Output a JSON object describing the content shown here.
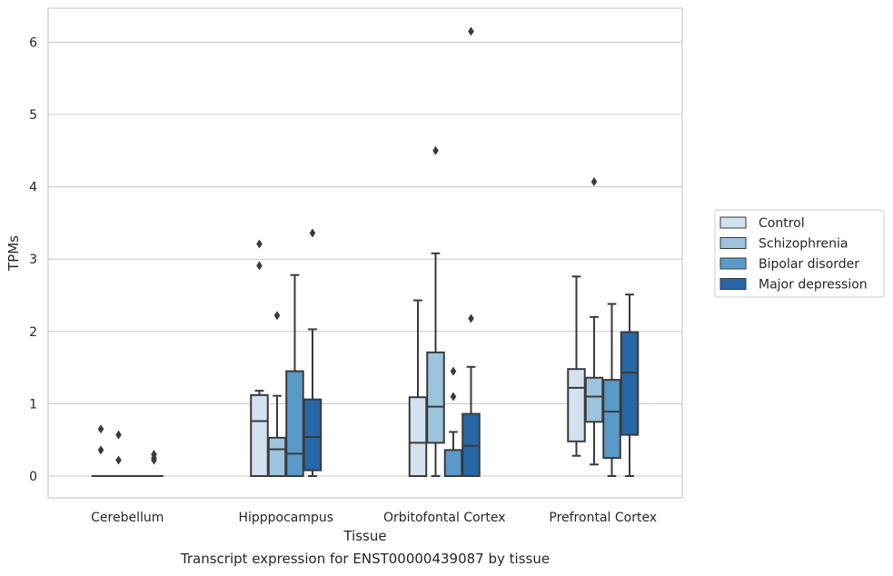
{
  "caption": "Transcript expression for ENST00000439087 by tissue",
  "colors": {
    "Control": "#d4e2f0",
    "Schizophrenia": "#9cc4dd",
    "Bipolar disorder": "#5a9ac9",
    "Major depression": "#2867a6",
    "edge": "#3a3a3a",
    "grid": "#cccccc",
    "frame": "#cccccc"
  },
  "chart_data": {
    "type": "box",
    "xlabel": "Tissue",
    "ylabel": "TPMs",
    "ylim": [
      -0.3,
      6.45
    ],
    "yticks": [
      0,
      1,
      2,
      3,
      4,
      5,
      6
    ],
    "grid": true,
    "legend_position": "right-outside",
    "categories": [
      "Cerebellum",
      "Hipppocampus",
      "Orbitofontal Cortex",
      "Prefrontal Cortex"
    ],
    "series": [
      {
        "name": "Control",
        "boxes": [
          {
            "min": 0,
            "q1": 0,
            "median": 0,
            "q3": 0,
            "max": 0,
            "outliers": [
              0.36,
              0.65
            ]
          },
          {
            "min": 0,
            "q1": 0,
            "median": 0.76,
            "q3": 1.12,
            "max": 1.18,
            "outliers": [
              2.91,
              3.21
            ]
          },
          {
            "min": 0,
            "q1": 0,
            "median": 0.46,
            "q3": 1.09,
            "max": 2.43,
            "outliers": []
          },
          {
            "min": 0.28,
            "q1": 0.48,
            "median": 1.22,
            "q3": 1.48,
            "max": 2.76,
            "outliers": []
          }
        ]
      },
      {
        "name": "Schizophrenia",
        "boxes": [
          {
            "min": 0,
            "q1": 0,
            "median": 0,
            "q3": 0,
            "max": 0,
            "outliers": [
              0.22,
              0.57
            ]
          },
          {
            "min": 0,
            "q1": 0,
            "median": 0.37,
            "q3": 0.53,
            "max": 1.11,
            "outliers": [
              2.22
            ]
          },
          {
            "min": 0,
            "q1": 0.46,
            "median": 0.96,
            "q3": 1.71,
            "max": 3.08,
            "outliers": [
              4.5
            ]
          },
          {
            "min": 0.16,
            "q1": 0.75,
            "median": 1.1,
            "q3": 1.36,
            "max": 2.2,
            "outliers": [
              4.07
            ]
          }
        ]
      },
      {
        "name": "Bipolar disorder",
        "boxes": [
          {
            "min": 0,
            "q1": 0,
            "median": 0,
            "q3": 0,
            "max": 0,
            "outliers": []
          },
          {
            "min": 0,
            "q1": 0,
            "median": 0.31,
            "q3": 1.45,
            "max": 2.78,
            "outliers": []
          },
          {
            "min": 0,
            "q1": 0,
            "median": 0,
            "q3": 0.36,
            "max": 0.61,
            "outliers": [
              1.1,
              1.45
            ]
          },
          {
            "min": 0,
            "q1": 0.25,
            "median": 0.89,
            "q3": 1.33,
            "max": 2.38,
            "outliers": []
          }
        ]
      },
      {
        "name": "Major depression",
        "boxes": [
          {
            "min": 0,
            "q1": 0,
            "median": 0,
            "q3": 0,
            "max": 0,
            "outliers": [
              0.22,
              0.25,
              0.3
            ]
          },
          {
            "min": 0,
            "q1": 0.08,
            "median": 0.54,
            "q3": 1.06,
            "max": 2.03,
            "outliers": [
              3.36
            ]
          },
          {
            "min": 0,
            "q1": 0,
            "median": 0.42,
            "q3": 0.86,
            "max": 1.51,
            "outliers": [
              2.18,
              6.15
            ]
          },
          {
            "min": 0,
            "q1": 0.57,
            "median": 1.43,
            "q3": 1.99,
            "max": 2.51,
            "outliers": []
          }
        ]
      }
    ]
  }
}
